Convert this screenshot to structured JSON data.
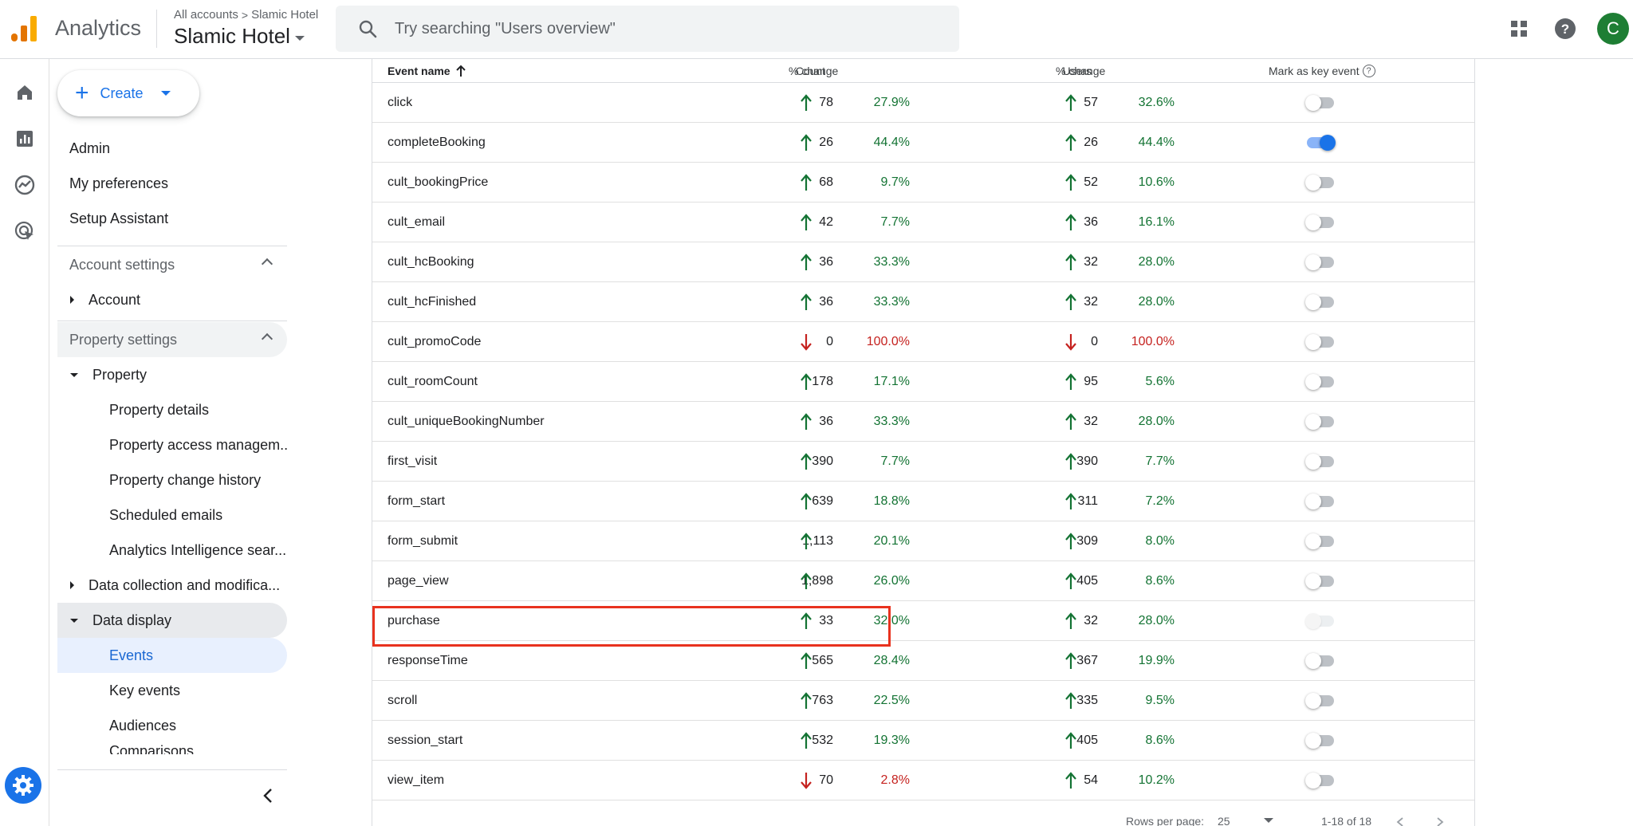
{
  "header": {
    "app_name": "Analytics",
    "breadcrumb_root": "All accounts",
    "breadcrumb_account": "Slamic Hotel",
    "property": "Slamic Hotel",
    "search_placeholder": "Try searching \"Users overview\"",
    "avatar_letter": "C"
  },
  "nav": {
    "create_label": "Create",
    "admin": "Admin",
    "my_preferences": "My preferences",
    "setup_assistant": "Setup Assistant",
    "account_settings": "Account settings",
    "account": "Account",
    "property_settings": "Property settings",
    "property": "Property",
    "property_details": "Property details",
    "property_access": "Property access managem...",
    "property_change_history": "Property change history",
    "scheduled_emails": "Scheduled emails",
    "analytics_intelligence": "Analytics Intelligence sear...",
    "data_collection": "Data collection and modifica...",
    "data_display": "Data display",
    "events": "Events",
    "key_events": "Key events",
    "audiences": "Audiences",
    "cut_off": "Comparisons"
  },
  "table": {
    "headers": {
      "event_name": "Event name",
      "count": "Count",
      "count_change": "% change",
      "users": "Users",
      "users_change": "% change",
      "key_event": "Mark as key event"
    },
    "rows": [
      {
        "name": "click",
        "count": "78",
        "count_change": "27.9%",
        "count_dir": "up",
        "users": "57",
        "users_change": "32.6%",
        "users_dir": "up",
        "toggle": "off"
      },
      {
        "name": "completeBooking",
        "count": "26",
        "count_change": "44.4%",
        "count_dir": "up",
        "users": "26",
        "users_change": "44.4%",
        "users_dir": "up",
        "toggle": "on"
      },
      {
        "name": "cult_bookingPrice",
        "count": "68",
        "count_change": "9.7%",
        "count_dir": "up",
        "users": "52",
        "users_change": "10.6%",
        "users_dir": "up",
        "toggle": "off"
      },
      {
        "name": "cult_email",
        "count": "42",
        "count_change": "7.7%",
        "count_dir": "up",
        "users": "36",
        "users_change": "16.1%",
        "users_dir": "up",
        "toggle": "off"
      },
      {
        "name": "cult_hcBooking",
        "count": "36",
        "count_change": "33.3%",
        "count_dir": "up",
        "users": "32",
        "users_change": "28.0%",
        "users_dir": "up",
        "toggle": "off"
      },
      {
        "name": "cult_hcFinished",
        "count": "36",
        "count_change": "33.3%",
        "count_dir": "up",
        "users": "32",
        "users_change": "28.0%",
        "users_dir": "up",
        "toggle": "off"
      },
      {
        "name": "cult_promoCode",
        "count": "0",
        "count_change": "100.0%",
        "count_dir": "down",
        "users": "0",
        "users_change": "100.0%",
        "users_dir": "down",
        "toggle": "off"
      },
      {
        "name": "cult_roomCount",
        "count": "178",
        "count_change": "17.1%",
        "count_dir": "up",
        "users": "95",
        "users_change": "5.6%",
        "users_dir": "up",
        "toggle": "off"
      },
      {
        "name": "cult_uniqueBookingNumber",
        "count": "36",
        "count_change": "33.3%",
        "count_dir": "up",
        "users": "32",
        "users_change": "28.0%",
        "users_dir": "up",
        "toggle": "off"
      },
      {
        "name": "first_visit",
        "count": "390",
        "count_change": "7.7%",
        "count_dir": "up",
        "users": "390",
        "users_change": "7.7%",
        "users_dir": "up",
        "toggle": "off"
      },
      {
        "name": "form_start",
        "count": "639",
        "count_change": "18.8%",
        "count_dir": "up",
        "users": "311",
        "users_change": "7.2%",
        "users_dir": "up",
        "toggle": "off"
      },
      {
        "name": "form_submit",
        "count": "1,113",
        "count_change": "20.1%",
        "count_dir": "up",
        "users": "309",
        "users_change": "8.0%",
        "users_dir": "up",
        "toggle": "off"
      },
      {
        "name": "page_view",
        "count": "1,898",
        "count_change": "26.0%",
        "count_dir": "up",
        "users": "405",
        "users_change": "8.6%",
        "users_dir": "up",
        "toggle": "off"
      },
      {
        "name": "purchase",
        "count": "33",
        "count_change": "32.0%",
        "count_dir": "up",
        "users": "32",
        "users_change": "28.0%",
        "users_dir": "up",
        "toggle": "disabled"
      },
      {
        "name": "responseTime",
        "count": "565",
        "count_change": "28.4%",
        "count_dir": "up",
        "users": "367",
        "users_change": "19.9%",
        "users_dir": "up",
        "toggle": "off"
      },
      {
        "name": "scroll",
        "count": "763",
        "count_change": "22.5%",
        "count_dir": "up",
        "users": "335",
        "users_change": "9.5%",
        "users_dir": "up",
        "toggle": "off"
      },
      {
        "name": "session_start",
        "count": "532",
        "count_change": "19.3%",
        "count_dir": "up",
        "users": "405",
        "users_change": "8.6%",
        "users_dir": "up",
        "toggle": "off"
      },
      {
        "name": "view_item",
        "count": "70",
        "count_change": "2.8%",
        "count_dir": "down",
        "users": "54",
        "users_change": "10.2%",
        "users_dir": "up",
        "toggle": "off"
      }
    ],
    "footer": {
      "rows_per_page_label": "Rows per page:",
      "rows_per_page": "25",
      "range": "1-18 of 18"
    }
  },
  "colors": {
    "accent": "#1a73e8",
    "up": "#137333",
    "down": "#c5221f",
    "highlight": "#e8321e"
  }
}
